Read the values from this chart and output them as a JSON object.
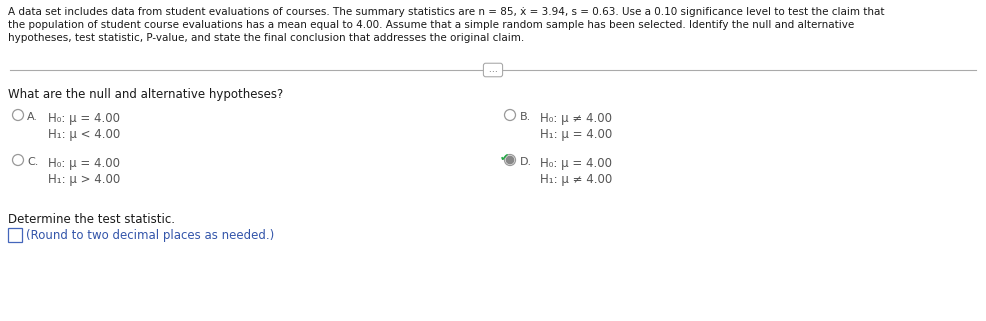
{
  "bg_color": "#ffffff",
  "text_color": "#1a1a1a",
  "gray_text": "#666666",
  "blue_text": "#3355aa",
  "header_line1": "A data set includes data from student evaluations of courses. The summary statistics are n = 85, ẋ = 3.94, s = 0.63. Use a 0.10 significance level to test the claim that",
  "header_line2": "the population of student course evaluations has a mean equal to 4.00. Assume that a simple random sample has been selected. Identify the null and alternative",
  "header_line3": "hypotheses, test statistic, P-value, and state the final conclusion that addresses the original claim.",
  "question_text": "What are the null and alternative hypotheses?",
  "optA_l1": "H₀: μ = 4.00",
  "optA_l2": "H₁: μ < 4.00",
  "optB_l1": "H₀: μ ≠ 4.00",
  "optB_l2": "H₁: μ = 4.00",
  "optC_l1": "H₀: μ = 4.00",
  "optC_l2": "H₁: μ > 4.00",
  "optD_l1": "H₀: μ = 4.00",
  "optD_l2": "H₁: μ ≠ 4.00",
  "determine_text": "Determine the test statistic.",
  "round_text": "(Round to two decimal places as needed.)",
  "fig_w": 9.86,
  "fig_h": 3.21,
  "dpi": 100
}
